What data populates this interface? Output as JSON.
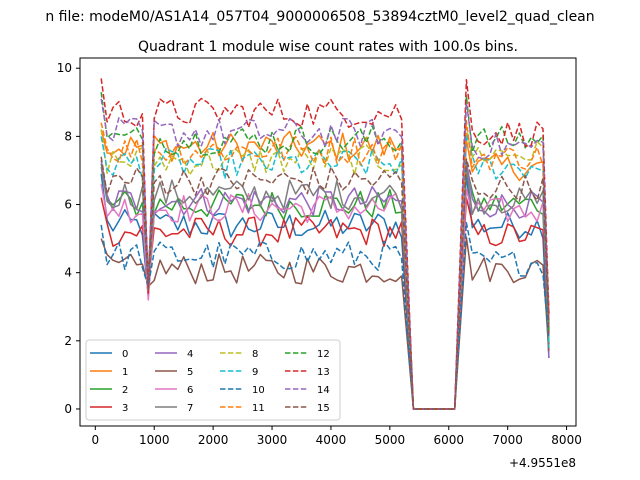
{
  "chart_data": {
    "type": "line",
    "suptitle": "n file: modeM0/AS1A14_057T04_9000006508_53894cztM0_level2_quad_clean",
    "title": "Quadrant 1 module wise count rates with 100.0s bins.",
    "xlabel": "",
    "ylabel": "",
    "x_offset_label": "+4.9551e8",
    "xlim": [
      -260,
      8160
    ],
    "ylim": [
      -0.5,
      10.3
    ],
    "xticks": [
      0,
      1000,
      2000,
      3000,
      4000,
      5000,
      6000,
      7000,
      8000
    ],
    "yticks": [
      0,
      2,
      4,
      6,
      8,
      10
    ],
    "grid": false,
    "legend_position": "lower-left",
    "legend_columns": 4,
    "segments": [
      {
        "x_start": 100,
        "x_end": 5200,
        "step": 100
      },
      {
        "x_start": 6300,
        "x_end": 7600,
        "step": 100
      }
    ],
    "zero_gap": {
      "x": [
        5400,
        6100
      ],
      "ramp_down_to": 5400,
      "ramp_up_from": 6100
    },
    "end_x": 7700,
    "dip": {
      "x": 900,
      "values": [
        3.3,
        3.5,
        3.8,
        3.7,
        3.9,
        3.6,
        3.2,
        3.5,
        3.4,
        3.7,
        3.6,
        3.9,
        3.8,
        3.4,
        3.6,
        3.5
      ]
    },
    "series": [
      {
        "name": "0",
        "color": "#1f77b4",
        "dash": "solid",
        "base_a": 5.4,
        "base_b": 5.4,
        "start": 6.9,
        "end": 1.5
      },
      {
        "name": "1",
        "color": "#ff7f0e",
        "dash": "solid",
        "base_a": 7.7,
        "base_b": 7.1,
        "start": 8.2,
        "end": 2.8
      },
      {
        "name": "2",
        "color": "#2ca02c",
        "dash": "solid",
        "base_a": 6.0,
        "base_b": 6.0,
        "start": 7.2,
        "end": 1.9
      },
      {
        "name": "3",
        "color": "#d62728",
        "dash": "solid",
        "base_a": 5.2,
        "base_b": 5.1,
        "start": 6.2,
        "end": 2.6
      },
      {
        "name": "4",
        "color": "#9467bd",
        "dash": "solid",
        "base_a": 6.1,
        "base_b": 6.0,
        "start": 7.3,
        "end": 1.5
      },
      {
        "name": "5",
        "color": "#8c564b",
        "dash": "solid",
        "base_a": 4.1,
        "base_b": 4.1,
        "start": 5.0,
        "end": 1.7
      },
      {
        "name": "6",
        "color": "#e377c2",
        "dash": "solid",
        "base_a": 5.9,
        "base_b": 5.8,
        "start": 6.6,
        "end": 2.4
      },
      {
        "name": "7",
        "color": "#7f7f7f",
        "dash": "solid",
        "base_a": 6.3,
        "base_b": 6.1,
        "start": 7.1,
        "end": 1.9
      },
      {
        "name": "8",
        "color": "#bcbd22",
        "dash": "dashed",
        "base_a": 7.3,
        "base_b": 7.5,
        "start": 8.2,
        "end": 2.0
      },
      {
        "name": "9",
        "color": "#17becf",
        "dash": "dashed",
        "base_a": 7.2,
        "base_b": 7.1,
        "start": 8.0,
        "end": 1.8
      },
      {
        "name": "10",
        "color": "#1f77b4",
        "dash": "dashed",
        "base_a": 4.5,
        "base_b": 4.3,
        "start": 5.4,
        "end": 2.1
      },
      {
        "name": "11",
        "color": "#ff7f0e",
        "dash": "dashed",
        "base_a": 7.6,
        "base_b": 7.4,
        "start": 8.4,
        "end": 2.6
      },
      {
        "name": "12",
        "color": "#2ca02c",
        "dash": "dashed",
        "base_a": 7.9,
        "base_b": 7.9,
        "start": 9.3,
        "end": 2.3
      },
      {
        "name": "13",
        "color": "#d62728",
        "dash": "dashed",
        "base_a": 8.7,
        "base_b": 8.1,
        "start": 9.7,
        "end": 2.8
      },
      {
        "name": "14",
        "color": "#9467bd",
        "dash": "dashed",
        "base_a": 8.1,
        "base_b": 7.7,
        "start": 9.1,
        "end": 2.5
      },
      {
        "name": "15",
        "color": "#8c564b",
        "dash": "dashed",
        "base_a": 6.7,
        "base_b": 6.5,
        "start": 7.4,
        "end": 2.2
      }
    ]
  }
}
